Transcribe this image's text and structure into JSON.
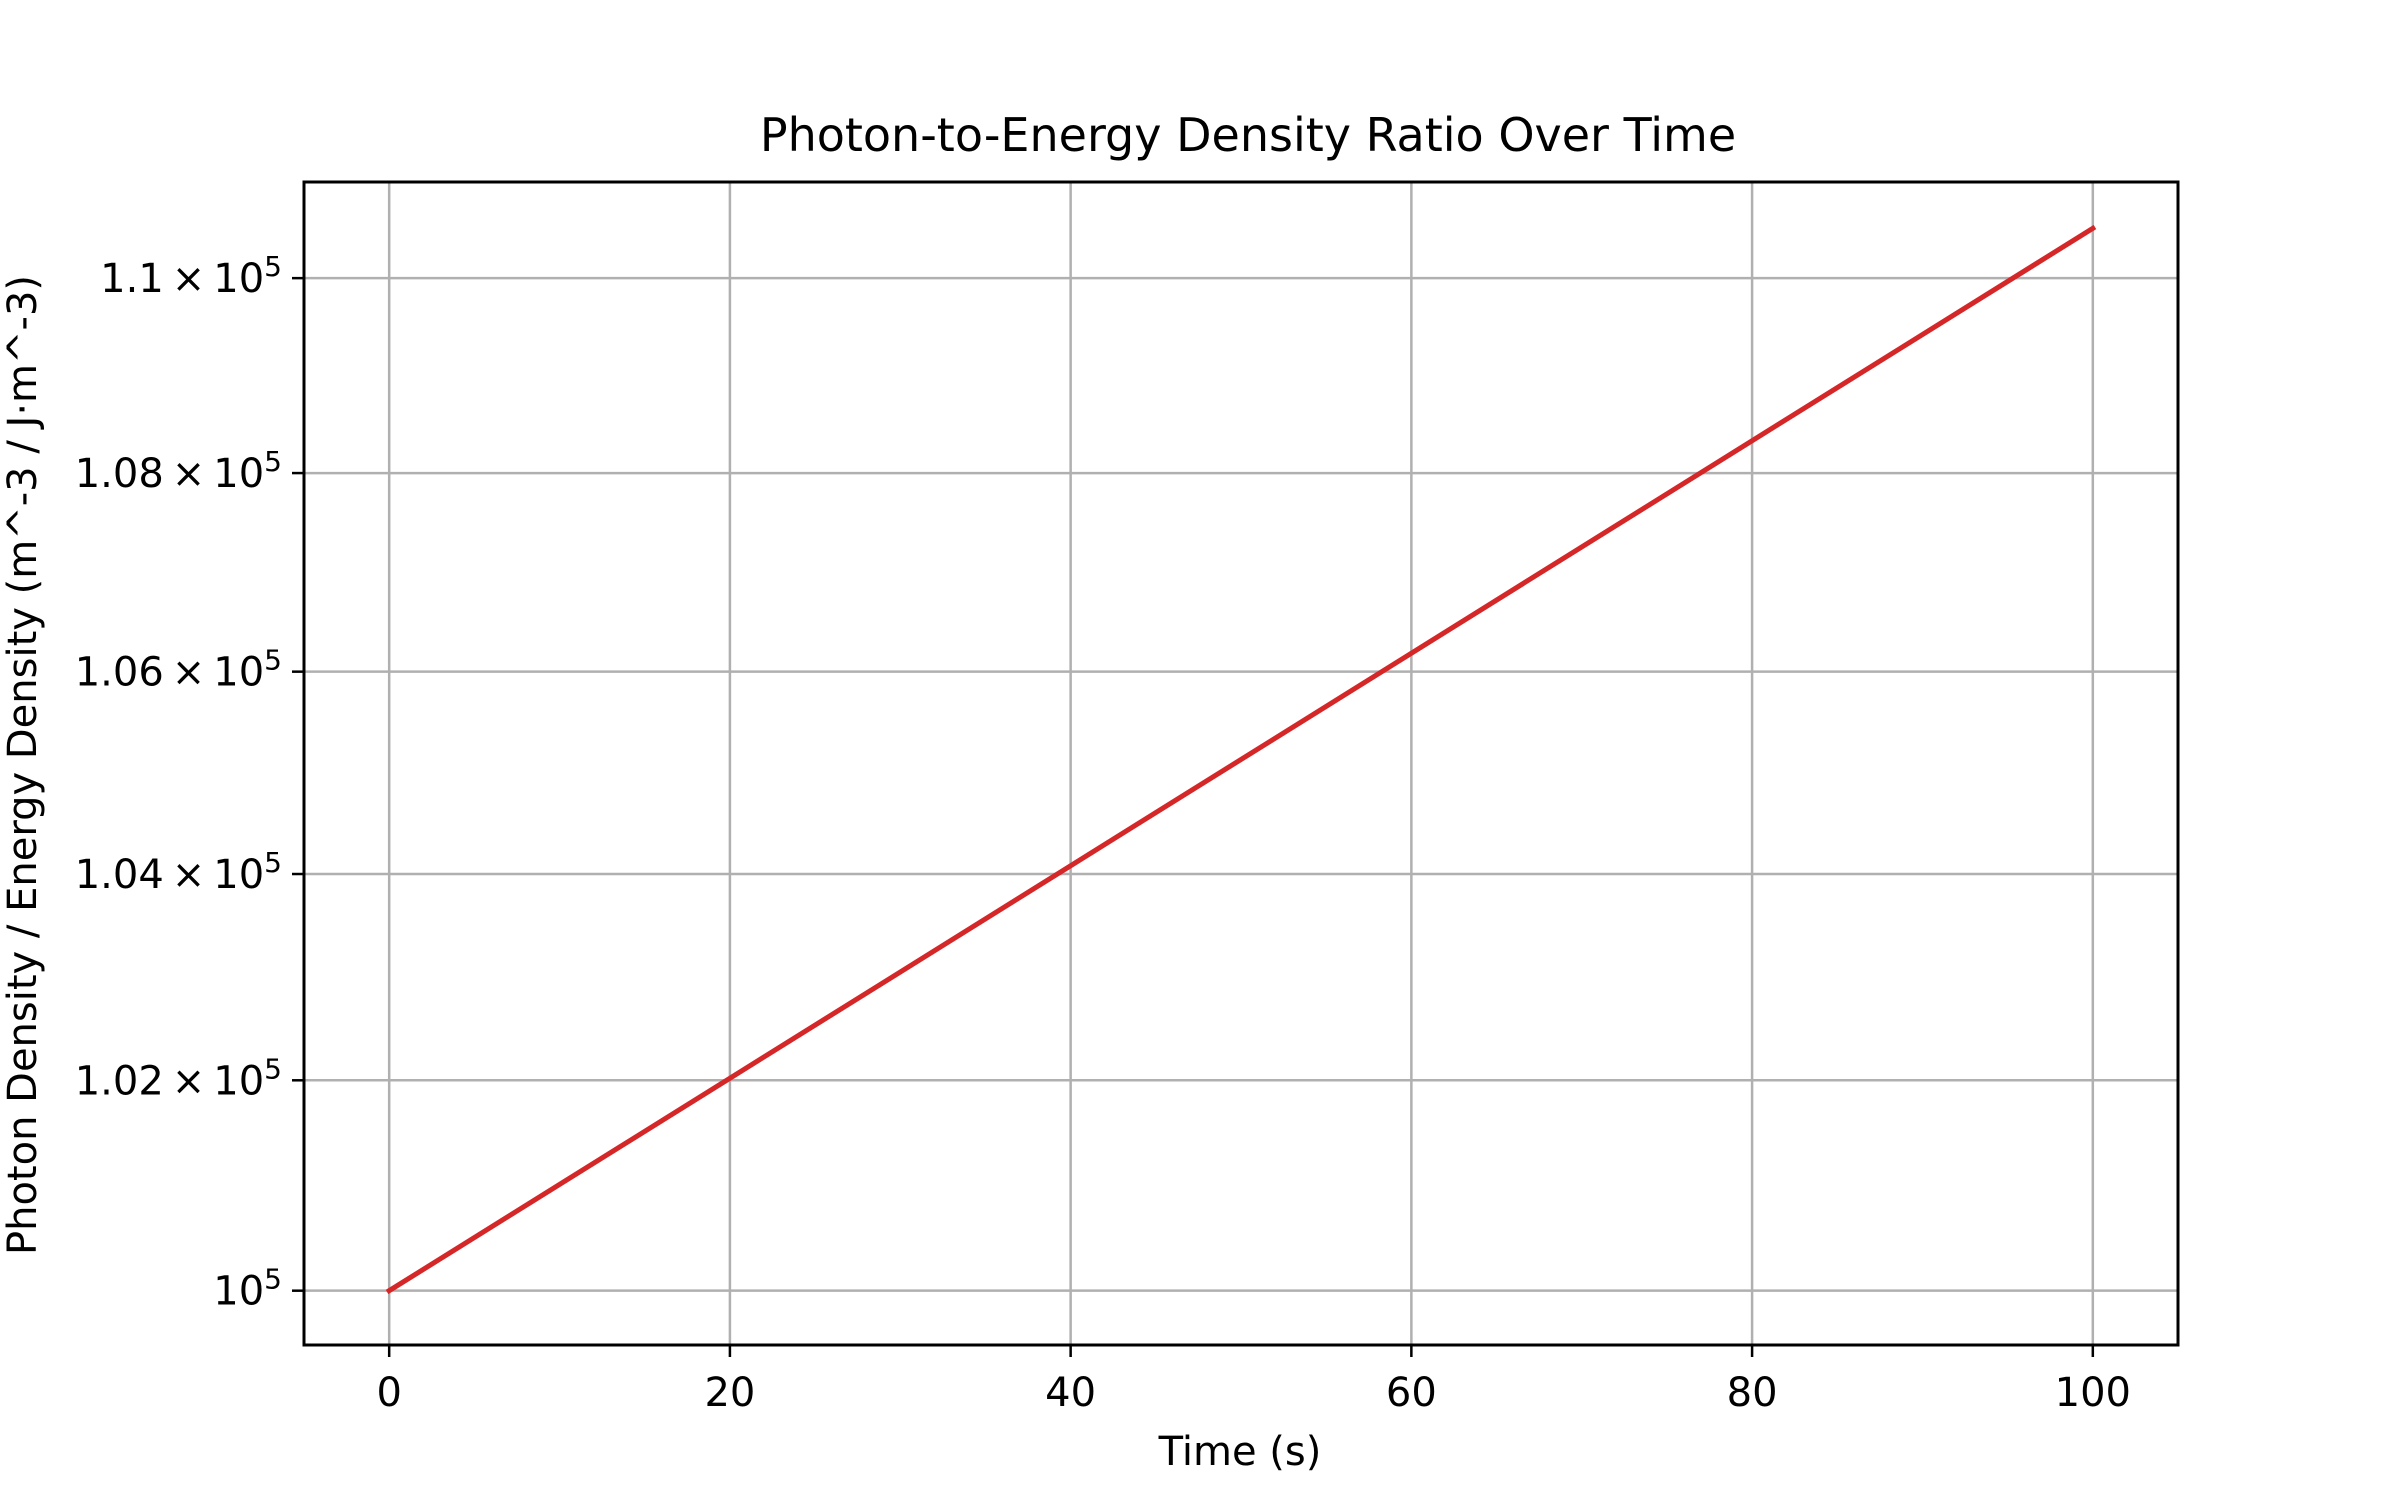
{
  "chart_data": {
    "type": "line",
    "title": "Photon-to-Energy Density Ratio Over Time",
    "xlabel": "Time (s)",
    "ylabel": "Photon Density / Energy Density (m^-3 / J·m^-3)",
    "yscale": "log",
    "xlim": [
      -5,
      105
    ],
    "ylim": [
      99490,
      111000
    ],
    "x_ticks": [
      0,
      20,
      40,
      60,
      80,
      100
    ],
    "x_tick_labels": [
      "0",
      "20",
      "40",
      "60",
      "80",
      "100"
    ],
    "y_ticks": [
      {
        "value": 100000,
        "mantissa": "",
        "exponent": "5"
      },
      {
        "value": 102000,
        "mantissa": "1.02",
        "exponent": "5"
      },
      {
        "value": 104000,
        "mantissa": "1.04",
        "exponent": "5"
      },
      {
        "value": 106000,
        "mantissa": "1.06",
        "exponent": "5"
      },
      {
        "value": 108000,
        "mantissa": "1.08",
        "exponent": "5"
      },
      {
        "value": 110000,
        "mantissa": "1.1",
        "exponent": "5"
      }
    ],
    "grid": true,
    "series": [
      {
        "color": "#d62728",
        "x": [
          0,
          20,
          40,
          60,
          80,
          100
        ],
        "y": [
          100000,
          102020,
          104081,
          106184,
          108329,
          110517
        ]
      }
    ]
  }
}
